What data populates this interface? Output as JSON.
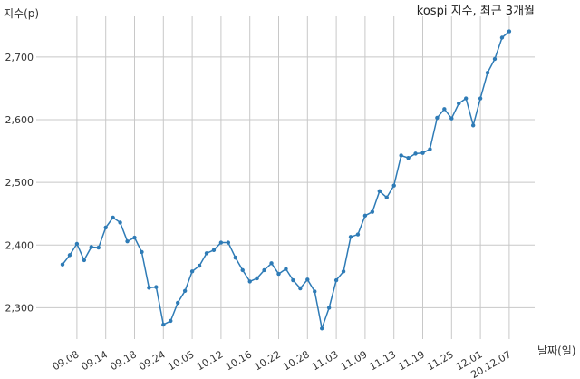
{
  "chart_data": {
    "type": "line",
    "title": "kospi 지수, 최근 3개월",
    "ylabel": "지수(p)",
    "xlabel": "날짜(일)",
    "ylim": [
      2250,
      2765
    ],
    "yticks": [
      2300,
      2400,
      2500,
      2600,
      2700
    ],
    "ytick_labels": [
      "2,300",
      "2,400",
      "2,500",
      "2,600",
      "2,700"
    ],
    "grid": true,
    "colors": {
      "line": "#2e7bb6",
      "grid": "#c8c8c8"
    },
    "xtick_indices": [
      2,
      6,
      10,
      14,
      18,
      22,
      26,
      30,
      34,
      38,
      42,
      46,
      50,
      54,
      58,
      62
    ],
    "xtick_labels": [
      "09.08",
      "09.14",
      "09.18",
      "09.24",
      "10.05",
      "10.12",
      "10.16",
      "10.22",
      "10.28",
      "11.03",
      "11.09",
      "11.13",
      "11.19",
      "11.25",
      "12.01",
      "20.12.07"
    ],
    "series": [
      {
        "values": [
          2369,
          2384,
          2402,
          2376,
          2397,
          2396,
          2428,
          2444,
          2436,
          2406,
          2412,
          2389,
          2332,
          2333,
          2273,
          2279,
          2308,
          2327,
          2358,
          2367,
          2387,
          2392,
          2404,
          2404,
          2380,
          2360,
          2342,
          2347,
          2360,
          2371,
          2354,
          2362,
          2344,
          2331,
          2345,
          2326,
          2267,
          2300,
          2344,
          2358,
          2413,
          2417,
          2447,
          2453,
          2486,
          2476,
          2495,
          2543,
          2539,
          2546,
          2547,
          2553,
          2603,
          2617,
          2602,
          2626,
          2634,
          2591,
          2634,
          2675,
          2697,
          2731,
          2741
        ]
      }
    ]
  }
}
